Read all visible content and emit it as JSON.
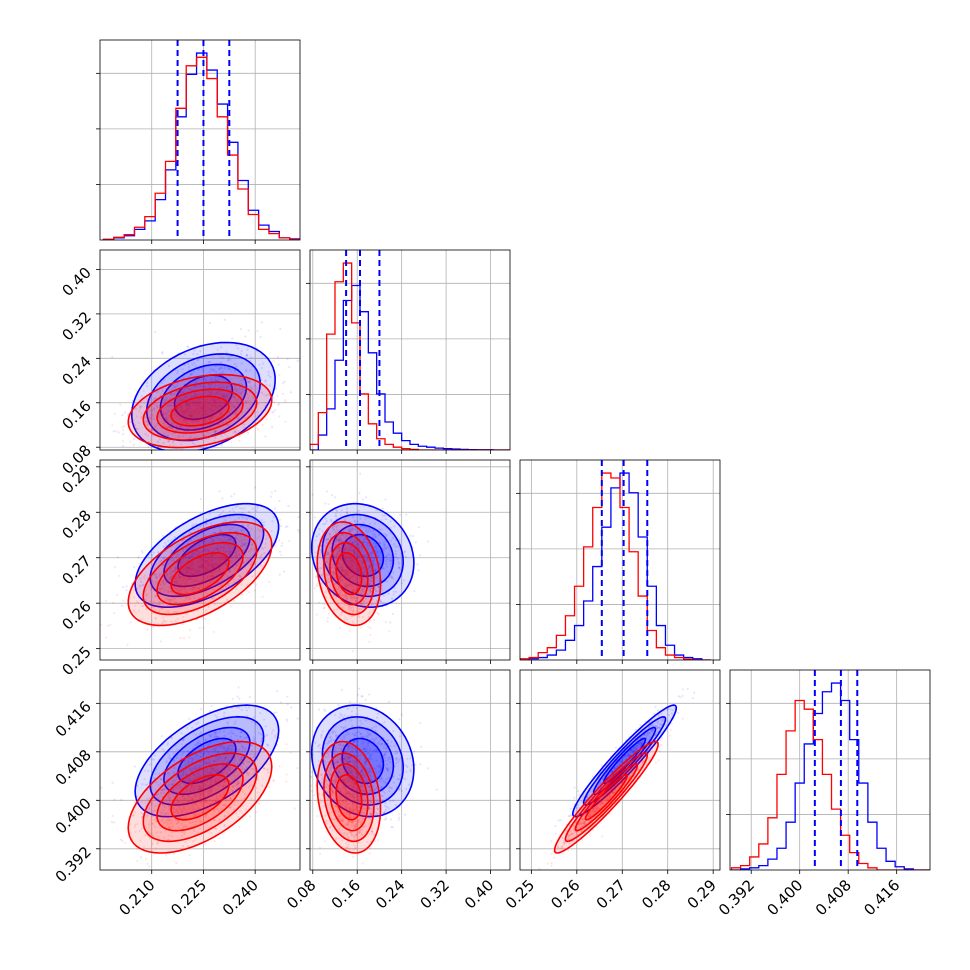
{
  "figure": {
    "type": "corner_plot",
    "series_colors": {
      "blue_sample": "#0000ff",
      "red_sample": "#ff0000"
    },
    "quantile_line_style": "dashed",
    "grid": true
  },
  "chart_data": [
    {
      "panel": "hist_param1",
      "type": "step_histogram",
      "xlim": [
        0.195,
        0.253
      ],
      "bin_centers": [
        0.1975,
        0.2005,
        0.2035,
        0.2065,
        0.2095,
        0.2125,
        0.2155,
        0.2185,
        0.2215,
        0.2245,
        0.2275,
        0.2305,
        0.2335,
        0.2365,
        0.2395,
        0.2425,
        0.2455,
        0.2485,
        0.2515
      ],
      "series": [
        {
          "color": "#0000ff",
          "values": [
            0.3,
            1,
            2,
            5,
            9,
            19,
            33,
            58,
            78,
            88,
            80,
            64,
            46,
            28,
            14,
            7,
            4,
            1,
            0.5
          ]
        },
        {
          "color": "#ff0000",
          "values": [
            0.3,
            1.3,
            2.5,
            6,
            11,
            22,
            37,
            62,
            82,
            86,
            76,
            58,
            40,
            24,
            12,
            5,
            3,
            1,
            0.3
          ]
        }
      ],
      "quantiles": [
        0.2175,
        0.225,
        0.2325
      ]
    },
    {
      "panel": "hist_param2",
      "type": "step_histogram",
      "xlim": [
        0.075,
        0.435
      ],
      "bin_centers": [
        0.0825,
        0.0975,
        0.1125,
        0.1275,
        0.1425,
        0.1575,
        0.1725,
        0.1875,
        0.2025,
        0.2175,
        0.2325,
        0.2475,
        0.2625,
        0.2775,
        0.2925,
        0.3075,
        0.3225,
        0.3375,
        0.3525,
        0.3675,
        0.3825,
        0.3975,
        0.4125,
        0.4275
      ],
      "series": [
        {
          "color": "#0000ff",
          "values": [
            0,
            8,
            22,
            48,
            80,
            88,
            74,
            52,
            30,
            15,
            9,
            5,
            3,
            2,
            1.5,
            1,
            0.7,
            0.5,
            0.3,
            0.2,
            0.1,
            0.1,
            0,
            0
          ]
        },
        {
          "color": "#ff0000",
          "values": [
            3,
            20,
            62,
            90,
            100,
            68,
            30,
            14,
            6,
            3,
            1.5,
            0.7,
            0.3,
            0,
            0,
            0,
            0,
            0,
            0,
            0,
            0,
            0,
            0,
            0
          ]
        }
      ],
      "quantiles": [
        0.14,
        0.165,
        0.2
      ]
    },
    {
      "panel": "hist_param3",
      "type": "step_histogram",
      "xlim": [
        0.2475,
        0.2915
      ],
      "bin_centers": [
        0.2485,
        0.2505,
        0.2525,
        0.2545,
        0.2565,
        0.2585,
        0.2605,
        0.2625,
        0.2645,
        0.2665,
        0.2685,
        0.2705,
        0.2725,
        0.2745,
        0.2765,
        0.2785,
        0.2805,
        0.2825,
        0.2845,
        0.2865,
        0.2885
      ],
      "series": [
        {
          "color": "#0000ff",
          "values": [
            0,
            0.5,
            1,
            2,
            4,
            8,
            14,
            24,
            38,
            54,
            70,
            76,
            68,
            50,
            30,
            14,
            6,
            2,
            1,
            0.5,
            0
          ]
        },
        {
          "color": "#ff0000",
          "values": [
            0.5,
            1,
            3,
            5,
            10,
            18,
            30,
            46,
            62,
            76,
            74,
            62,
            44,
            26,
            12,
            5,
            2,
            1,
            0.3,
            0,
            0
          ]
        }
      ],
      "quantiles": [
        0.2655,
        0.2703,
        0.2755
      ]
    },
    {
      "panel": "hist_param4",
      "type": "step_histogram",
      "xlim": [
        0.3885,
        0.4215
      ],
      "bin_centers": [
        0.3895,
        0.391,
        0.3925,
        0.394,
        0.3955,
        0.397,
        0.3985,
        0.4,
        0.4015,
        0.403,
        0.4045,
        0.406,
        0.4075,
        0.409,
        0.4105,
        0.412,
        0.4135,
        0.415,
        0.4165,
        0.418,
        0.4195,
        0.421
      ],
      "series": [
        {
          "color": "#0000ff",
          "values": [
            0,
            0.5,
            1,
            2,
            5,
            10,
            22,
            40,
            58,
            72,
            82,
            86,
            78,
            60,
            40,
            22,
            10,
            4,
            1.5,
            0.5,
            0,
            0
          ]
        },
        {
          "color": "#ff0000",
          "values": [
            1,
            2,
            6,
            12,
            24,
            44,
            64,
            78,
            74,
            60,
            44,
            28,
            16,
            8,
            3,
            1,
            0,
            0,
            0,
            0,
            0,
            0
          ]
        }
      ],
      "quantiles": [
        0.4025,
        0.4068,
        0.4095
      ]
    },
    {
      "panel": "joint_2_vs_1",
      "type": "scatter_density",
      "series": [
        {
          "color": "#0000ff",
          "mean": [
            0.225,
            0.17
          ],
          "sigma": [
            0.0095,
            0.045
          ],
          "corr": 0.32
        },
        {
          "color": "#ff0000",
          "mean": [
            0.224,
            0.145
          ],
          "sigma": [
            0.0095,
            0.03
          ],
          "corr": 0.3
        }
      ]
    },
    {
      "panel": "joint_3_vs_1",
      "type": "scatter_density",
      "series": [
        {
          "color": "#0000ff",
          "mean": [
            0.226,
            0.2705
          ],
          "sigma": [
            0.0095,
            0.0052
          ],
          "corr": 0.55
        },
        {
          "color": "#ff0000",
          "mean": [
            0.224,
            0.2665
          ],
          "sigma": [
            0.0095,
            0.0052
          ],
          "corr": 0.55
        }
      ]
    },
    {
      "panel": "joint_3_vs_2",
      "type": "scatter_density",
      "series": [
        {
          "color": "#0000ff",
          "mean": [
            0.17,
            0.2705
          ],
          "sigma": [
            0.042,
            0.0052
          ],
          "corr": -0.15
        },
        {
          "color": "#ff0000",
          "mean": [
            0.145,
            0.2665
          ],
          "sigma": [
            0.026,
            0.0052
          ],
          "corr": -0.2
        }
      ]
    },
    {
      "panel": "joint_4_vs_1",
      "type": "scatter_density",
      "series": [
        {
          "color": "#0000ff",
          "mean": [
            0.226,
            0.4065
          ],
          "sigma": [
            0.0095,
            0.0042
          ],
          "corr": 0.55
        },
        {
          "color": "#ff0000",
          "mean": [
            0.224,
            0.4005
          ],
          "sigma": [
            0.0095,
            0.0042
          ],
          "corr": 0.55
        }
      ]
    },
    {
      "panel": "joint_4_vs_2",
      "type": "scatter_density",
      "series": [
        {
          "color": "#0000ff",
          "mean": [
            0.17,
            0.4065
          ],
          "sigma": [
            0.042,
            0.0042
          ],
          "corr": -0.15
        },
        {
          "color": "#ff0000",
          "mean": [
            0.145,
            0.4005
          ],
          "sigma": [
            0.026,
            0.0042
          ],
          "corr": -0.2
        }
      ]
    },
    {
      "panel": "joint_4_vs_3",
      "type": "scatter_density",
      "series": [
        {
          "color": "#0000ff",
          "mean": [
            0.2705,
            0.4065
          ],
          "sigma": [
            0.0052,
            0.0042
          ],
          "corr": 0.95
        },
        {
          "color": "#ff0000",
          "mean": [
            0.2665,
            0.4005
          ],
          "sigma": [
            0.0052,
            0.0042
          ],
          "corr": 0.95
        }
      ]
    }
  ],
  "axes": {
    "param1": {
      "range": [
        0.195,
        0.253
      ],
      "ticks": [
        0.21,
        0.225,
        0.24
      ],
      "tick_labels": [
        "0.210",
        "0.225",
        "0.240"
      ]
    },
    "param2": {
      "range": [
        0.075,
        0.435
      ],
      "ticks": [
        0.08,
        0.16,
        0.24,
        0.32,
        0.4
      ],
      "tick_labels": [
        "0.08",
        "0.16",
        "0.24",
        "0.32",
        "0.40"
      ]
    },
    "param3": {
      "range": [
        0.2475,
        0.2915
      ],
      "ticks": [
        0.25,
        0.26,
        0.27,
        0.28,
        0.29
      ],
      "tick_labels": [
        "0.25",
        "0.26",
        "0.27",
        "0.28",
        "0.29"
      ]
    },
    "param4": {
      "range": [
        0.3885,
        0.4215
      ],
      "ticks": [
        0.392,
        0.4,
        0.408,
        0.416
      ],
      "tick_labels": [
        "0.392",
        "0.400",
        "0.408",
        "0.416"
      ]
    }
  }
}
